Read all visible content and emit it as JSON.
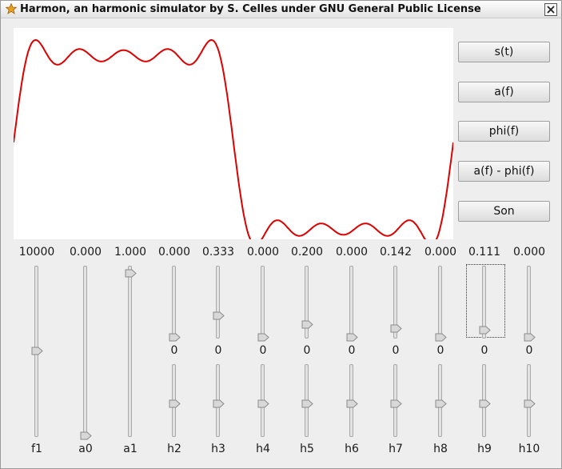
{
  "window": {
    "title": "Harmon, an harmonic simulator by S. Celles under GNU General Public License",
    "icon": "star-icon",
    "close_icon": "close-icon"
  },
  "plot": {
    "type": "line",
    "series": [
      {
        "color": "#dd0000",
        "values": [
          0,
          0.8,
          0.8,
          0.4,
          0.0,
          -0.6,
          -0.9
        ]
      }
    ]
  },
  "buttons": [
    {
      "label": "s(t)"
    },
    {
      "label": "a(f)"
    },
    {
      "label": "phi(f)"
    },
    {
      "label": "a(f) - phi(f)"
    },
    {
      "label": "Son"
    }
  ],
  "sliders": [
    {
      "name": "f1",
      "value": "10000",
      "amplitude_level": 0.52,
      "phase": null,
      "phase_level": null
    },
    {
      "name": "a0",
      "value": "0.000",
      "amplitude_level": 0.0,
      "phase": null,
      "phase_level": null
    },
    {
      "name": "a1",
      "value": "1.000",
      "amplitude_level": 1.0,
      "phase": null,
      "phase_level": null
    },
    {
      "name": "h2",
      "value": "0.000",
      "amplitude_level": 0.0,
      "phase": "0",
      "phase_level": 0.5
    },
    {
      "name": "h3",
      "value": "0.333",
      "amplitude_level": 0.333,
      "phase": "0",
      "phase_level": 0.5
    },
    {
      "name": "h4",
      "value": "0.000",
      "amplitude_level": 0.0,
      "phase": "0",
      "phase_level": 0.5
    },
    {
      "name": "h5",
      "value": "0.200",
      "amplitude_level": 0.2,
      "phase": "0",
      "phase_level": 0.5
    },
    {
      "name": "h6",
      "value": "0.000",
      "amplitude_level": 0.0,
      "phase": "0",
      "phase_level": 0.5
    },
    {
      "name": "h7",
      "value": "0.142",
      "amplitude_level": 0.142,
      "phase": "0",
      "phase_level": 0.5
    },
    {
      "name": "h8",
      "value": "0.000",
      "amplitude_level": 0.0,
      "phase": "0",
      "phase_level": 0.5
    },
    {
      "name": "h9",
      "value": "0.111",
      "amplitude_level": 0.111,
      "phase": "0",
      "phase_level": 0.5
    },
    {
      "name": "h10",
      "value": "0.000",
      "amplitude_level": 0.0,
      "phase": "0",
      "phase_level": 0.5
    }
  ]
}
